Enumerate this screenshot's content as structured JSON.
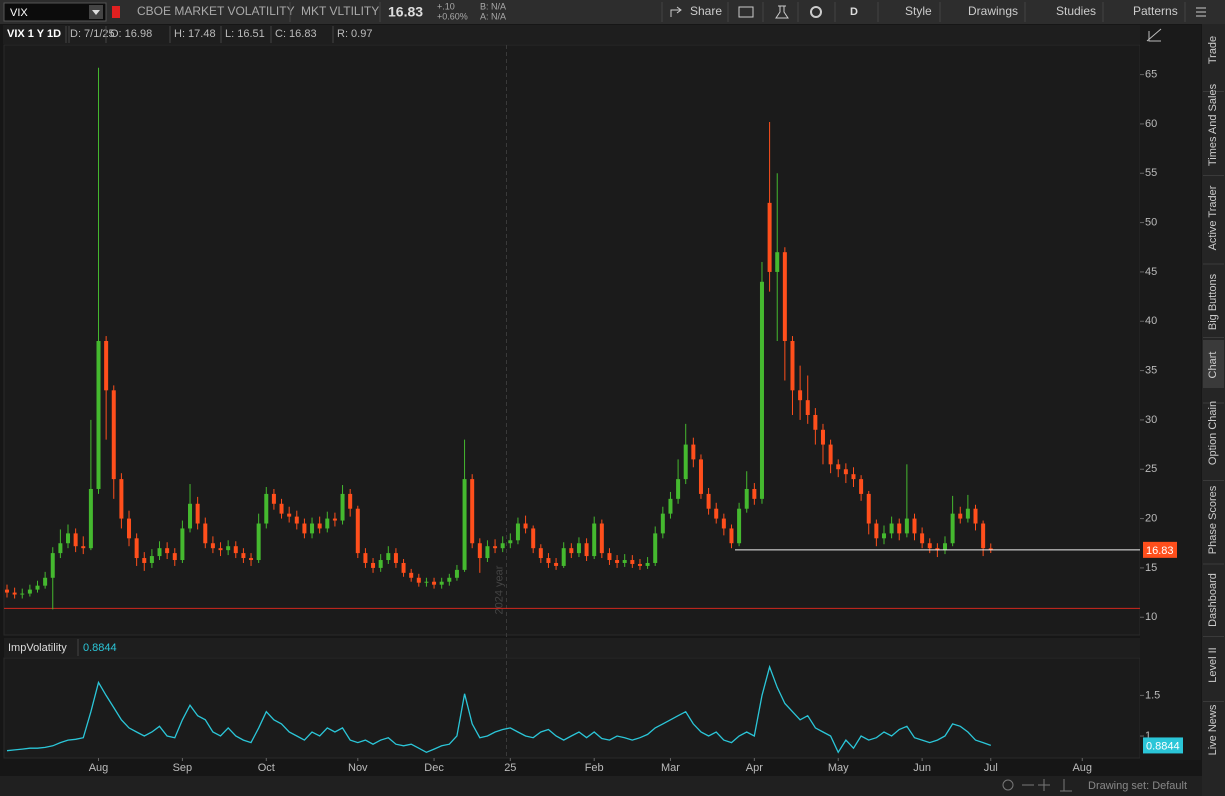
{
  "toolbar": {
    "symbol": "VIX",
    "description": "CBOE MARKET VOLATILITY",
    "exchange": "MKT VLTILITY",
    "last": "16.83",
    "change": "+.10",
    "change_pct": "+0.60%",
    "bid": "B: N/A",
    "ask": "A: N/A",
    "buttons": [
      "Share",
      "D",
      "Style",
      "Drawings",
      "Studies",
      "Patterns"
    ]
  },
  "sidebar_tabs": [
    "Trade",
    "Times And Sales",
    "Active Trader",
    "Big Buttons",
    "Chart",
    "Option Chain",
    "Phase Scores",
    "Dashboard",
    "Level II",
    "Live News"
  ],
  "status": "Drawing set: Default",
  "chart_data": [
    {
      "type": "candlestick",
      "header": [
        "VIX 1 Y 1D",
        "D: 7/1/25",
        "O: 16.98",
        "H: 17.48",
        "L: 16.51",
        "C: 16.83",
        "R: 0.97"
      ],
      "annotation": "2024 year",
      "up_color": "#45b92f",
      "down_color": "#ff4f1c",
      "reference_line": 10.9,
      "reference_color": "#d0281e",
      "categories": [
        null,
        null,
        null,
        null,
        null,
        null,
        null,
        null,
        null,
        null,
        null,
        null,
        "Aug",
        null,
        null,
        null,
        null,
        null,
        null,
        null,
        null,
        null,
        null,
        "Sep",
        null,
        null,
        null,
        null,
        null,
        null,
        null,
        null,
        null,
        null,
        "Oct",
        null,
        null,
        null,
        null,
        null,
        null,
        null,
        null,
        null,
        null,
        null,
        "Nov",
        null,
        null,
        null,
        null,
        null,
        null,
        null,
        null,
        null,
        "Dec",
        null,
        null,
        null,
        null,
        null,
        null,
        null,
        null,
        null,
        "25",
        null,
        null,
        null,
        null,
        null,
        null,
        null,
        null,
        null,
        null,
        "Feb",
        null,
        null,
        null,
        null,
        null,
        null,
        null,
        null,
        null,
        "Mar",
        null,
        null,
        null,
        null,
        null,
        null,
        null,
        null,
        null,
        null,
        "Apr",
        null,
        null,
        null,
        null,
        null,
        null,
        null,
        null,
        null,
        null,
        "May",
        null,
        null,
        null,
        null,
        null,
        null,
        null,
        null,
        null,
        null,
        "Jun",
        null,
        null,
        null,
        null,
        null,
        null,
        null,
        null,
        "Jul",
        null,
        null,
        null,
        null,
        null,
        null,
        null,
        null,
        null,
        null,
        null,
        "Aug",
        null,
        null,
        null,
        null,
        null,
        null
      ],
      "open": [
        12.8,
        12.5,
        12.3,
        12.4,
        12.8,
        13.2,
        14.0,
        16.5,
        17.5,
        18.5,
        17.2,
        17.0,
        23.0,
        38.0,
        33.0,
        24.0,
        20.0,
        18.0,
        16.0,
        15.5,
        16.2,
        17.0,
        16.5,
        15.8,
        19.0,
        21.5,
        19.5,
        17.5,
        17.0,
        16.8,
        17.2,
        16.5,
        16.0,
        15.8,
        19.5,
        22.5,
        21.5,
        20.5,
        20.2,
        19.5,
        18.5,
        19.5,
        19.0,
        20.0,
        19.8,
        22.5,
        21.0,
        16.5,
        15.5,
        15.0,
        15.8,
        16.5,
        15.5,
        14.5,
        14.0,
        13.5,
        13.6,
        13.3,
        13.6,
        14.0,
        14.8,
        24.0,
        17.5,
        16.0,
        17.2,
        17.0,
        17.5,
        17.8,
        19.5,
        19.0,
        17.0,
        16.0,
        15.5,
        15.2,
        17.0,
        16.5,
        17.5,
        16.2,
        19.5,
        16.5,
        15.8,
        15.5,
        15.8,
        15.4,
        15.2,
        15.5,
        18.5,
        20.5,
        22.0,
        24.0,
        27.5,
        26.0,
        22.5,
        21.0,
        20.0,
        19.0,
        17.5,
        21.0,
        23.0,
        22.0,
        52.0,
        45.0,
        47.0,
        38.0,
        33.0,
        32.0,
        30.5,
        29.0,
        27.5,
        25.5,
        25.0,
        24.5,
        24.0,
        22.5,
        19.5,
        18.0,
        18.5,
        19.5,
        18.5,
        20.0,
        18.5,
        17.5,
        17.0,
        16.8,
        17.5,
        20.5,
        20.0,
        21.0,
        19.5,
        16.98,
        null,
        null,
        null,
        null,
        null,
        null,
        null,
        null,
        null,
        null,
        null,
        null,
        null,
        null,
        null,
        null,
        null,
        null
      ],
      "high": [
        13.3,
        13.0,
        12.9,
        13.3,
        13.7,
        14.6,
        17.1,
        18.9,
        19.4,
        19.0,
        18.2,
        30.0,
        65.7,
        38.5,
        33.5,
        24.6,
        20.8,
        18.5,
        16.6,
        16.9,
        17.7,
        17.6,
        17.0,
        19.8,
        23.5,
        22.2,
        20.1,
        18.2,
        17.6,
        17.8,
        17.7,
        17.0,
        16.5,
        20.5,
        23.2,
        23.0,
        22.0,
        21.2,
        20.8,
        20.0,
        20.1,
        20.2,
        20.7,
        20.6,
        23.4,
        23.0,
        21.3,
        17.0,
        16.0,
        16.4,
        17.2,
        17.0,
        15.9,
        14.9,
        14.4,
        14.0,
        14.0,
        14.0,
        14.4,
        15.3,
        28.0,
        24.5,
        18.0,
        17.8,
        17.9,
        18.2,
        18.5,
        20.1,
        20.3,
        19.3,
        17.4,
        16.5,
        16.0,
        17.6,
        17.5,
        18.1,
        18.0,
        20.2,
        19.9,
        17.0,
        16.3,
        16.4,
        16.3,
        15.9,
        16.1,
        19.2,
        21.2,
        22.7,
        26.0,
        29.6,
        28.2,
        26.5,
        23.1,
        21.6,
        20.5,
        19.4,
        21.6,
        24.8,
        23.6,
        46.0,
        60.2,
        55.0,
        47.5,
        38.5,
        35.5,
        34.5,
        31.2,
        29.6,
        28.0,
        26.0,
        25.6,
        25.2,
        24.4,
        22.8,
        19.9,
        19.3,
        20.2,
        20.0,
        25.5,
        20.5,
        19.1,
        18.0,
        17.5,
        18.2,
        22.3,
        21.2,
        22.4,
        21.4,
        19.8,
        17.48,
        null,
        null,
        null,
        null,
        null,
        null,
        null,
        null,
        null,
        null,
        null,
        null,
        null,
        null,
        null,
        null,
        null,
        null
      ],
      "low": [
        12.0,
        11.9,
        11.9,
        12.1,
        12.5,
        12.9,
        10.8,
        16.0,
        17.0,
        16.6,
        16.4,
        16.8,
        22.5,
        28.0,
        22.0,
        19.0,
        17.2,
        15.2,
        14.7,
        15.0,
        15.8,
        15.9,
        15.2,
        15.5,
        18.6,
        18.9,
        17.0,
        16.5,
        16.2,
        16.3,
        16.0,
        15.5,
        15.2,
        15.5,
        19.0,
        20.9,
        20.0,
        19.6,
        18.9,
        18.0,
        18.0,
        18.5,
        18.6,
        19.2,
        19.4,
        20.2,
        16.0,
        15.0,
        14.5,
        14.6,
        15.4,
        15.0,
        14.1,
        13.6,
        13.1,
        13.1,
        12.9,
        12.9,
        13.2,
        13.7,
        14.6,
        17.0,
        14.5,
        15.6,
        16.5,
        16.6,
        17.0,
        17.4,
        18.5,
        16.5,
        15.5,
        15.0,
        14.8,
        15.0,
        16.0,
        16.1,
        15.7,
        15.9,
        16.0,
        15.3,
        15.0,
        15.1,
        15.0,
        14.8,
        14.9,
        15.2,
        18.0,
        20.0,
        21.5,
        23.5,
        25.2,
        22.0,
        20.4,
        19.5,
        18.3,
        17.0,
        17.2,
        20.6,
        21.4,
        21.5,
        43.0,
        38.0,
        34.0,
        30.5,
        30.0,
        29.6,
        27.5,
        25.5,
        24.6,
        24.2,
        23.6,
        23.2,
        21.8,
        18.4,
        17.2,
        17.4,
        18.0,
        17.8,
        18.1,
        17.8,
        17.0,
        16.5,
        16.1,
        16.4,
        17.2,
        19.5,
        19.6,
        18.8,
        16.2,
        16.51,
        null,
        null,
        null,
        null,
        null,
        null,
        null,
        null,
        null,
        null,
        null,
        null,
        null,
        null,
        null,
        null,
        null,
        null
      ],
      "close": [
        12.5,
        12.3,
        12.4,
        12.8,
        13.2,
        14.0,
        16.5,
        17.5,
        18.5,
        17.2,
        17.0,
        23.0,
        38.0,
        33.0,
        24.0,
        20.0,
        18.0,
        16.0,
        15.5,
        16.2,
        17.0,
        16.5,
        15.8,
        19.0,
        21.5,
        19.5,
        17.5,
        17.0,
        16.8,
        17.2,
        16.5,
        16.0,
        15.8,
        19.5,
        22.5,
        21.5,
        20.5,
        20.2,
        19.5,
        18.5,
        19.5,
        19.0,
        20.0,
        19.8,
        22.5,
        21.0,
        16.5,
        15.5,
        15.0,
        15.8,
        16.5,
        15.5,
        14.5,
        14.0,
        13.5,
        13.6,
        13.3,
        13.6,
        14.0,
        14.8,
        24.0,
        17.5,
        16.0,
        17.2,
        17.0,
        17.5,
        17.8,
        19.5,
        19.0,
        17.0,
        16.0,
        15.5,
        15.2,
        17.0,
        16.5,
        17.5,
        16.2,
        19.5,
        16.5,
        15.8,
        15.5,
        15.8,
        15.4,
        15.2,
        15.5,
        18.5,
        20.5,
        22.0,
        24.0,
        27.5,
        26.0,
        22.5,
        21.0,
        20.0,
        19.0,
        17.5,
        21.0,
        23.0,
        22.0,
        44.0,
        45.0,
        47.0,
        38.0,
        33.0,
        32.0,
        30.5,
        29.0,
        27.5,
        25.5,
        25.0,
        24.5,
        24.0,
        22.5,
        19.5,
        18.0,
        18.5,
        19.5,
        18.5,
        20.0,
        18.5,
        17.5,
        17.0,
        16.8,
        17.5,
        20.5,
        20.0,
        21.0,
        19.5,
        17.0,
        16.83,
        null,
        null,
        null,
        null,
        null,
        null,
        null,
        null,
        null,
        null,
        null,
        null,
        null,
        null,
        null,
        null,
        null,
        null
      ],
      "ylim": [
        8.2,
        68
      ],
      "yticks": [
        10,
        15,
        20,
        25,
        30,
        35,
        40,
        45,
        50,
        55,
        60,
        65
      ]
    },
    {
      "type": "line",
      "name": "ImpVolatility",
      "series": [
        {
          "name": "ImpVolatility",
          "color": "#2bc6d8",
          "values": [
            0.82,
            0.83,
            0.84,
            0.85,
            0.85,
            0.86,
            0.88,
            0.92,
            0.95,
            0.96,
            0.98,
            1.3,
            1.66,
            1.5,
            1.35,
            1.2,
            1.1,
            1.05,
            1.0,
            1.05,
            1.12,
            1.0,
            0.98,
            1.2,
            1.38,
            1.25,
            1.2,
            1.05,
            1.0,
            1.1,
            1.0,
            0.95,
            0.92,
            1.1,
            1.3,
            1.2,
            1.15,
            1.05,
            1.0,
            0.95,
            1.05,
            1.0,
            1.1,
            1.05,
            1.1,
            0.95,
            0.92,
            0.95,
            0.9,
            0.95,
            0.98,
            0.9,
            0.88,
            0.9,
            0.85,
            0.8,
            0.84,
            0.88,
            0.9,
            1.0,
            1.52,
            1.15,
            0.98,
            1.0,
            1.05,
            1.08,
            1.1,
            1.05,
            1.0,
            0.98,
            1.05,
            1.08,
            1.0,
            0.95,
            1.0,
            1.05,
            0.98,
            1.05,
            0.97,
            0.95,
            1.0,
            0.98,
            0.95,
            0.98,
            1.02,
            1.1,
            1.15,
            1.2,
            1.25,
            1.3,
            1.15,
            1.05,
            1.0,
            1.05,
            0.95,
            0.92,
            1.0,
            1.05,
            1.0,
            1.5,
            1.85,
            1.6,
            1.4,
            1.3,
            1.2,
            1.25,
            1.1,
            1.05,
            1.0,
            0.8,
            0.95,
            0.85,
            1.0,
            0.95,
            0.98,
            1.05,
            1.0,
            1.08,
            1.12,
            0.98,
            0.95,
            0.92,
            0.95,
            1.0,
            1.15,
            1.12,
            1.05,
            0.95,
            0.92,
            0.8844,
            null,
            null,
            null,
            null,
            null,
            null,
            null,
            null,
            null,
            null,
            null,
            null,
            null,
            null,
            null,
            null,
            null,
            null
          ]
        }
      ],
      "ylim": [
        0.73,
        1.96
      ],
      "yticks": [
        1,
        1.5
      ]
    }
  ]
}
